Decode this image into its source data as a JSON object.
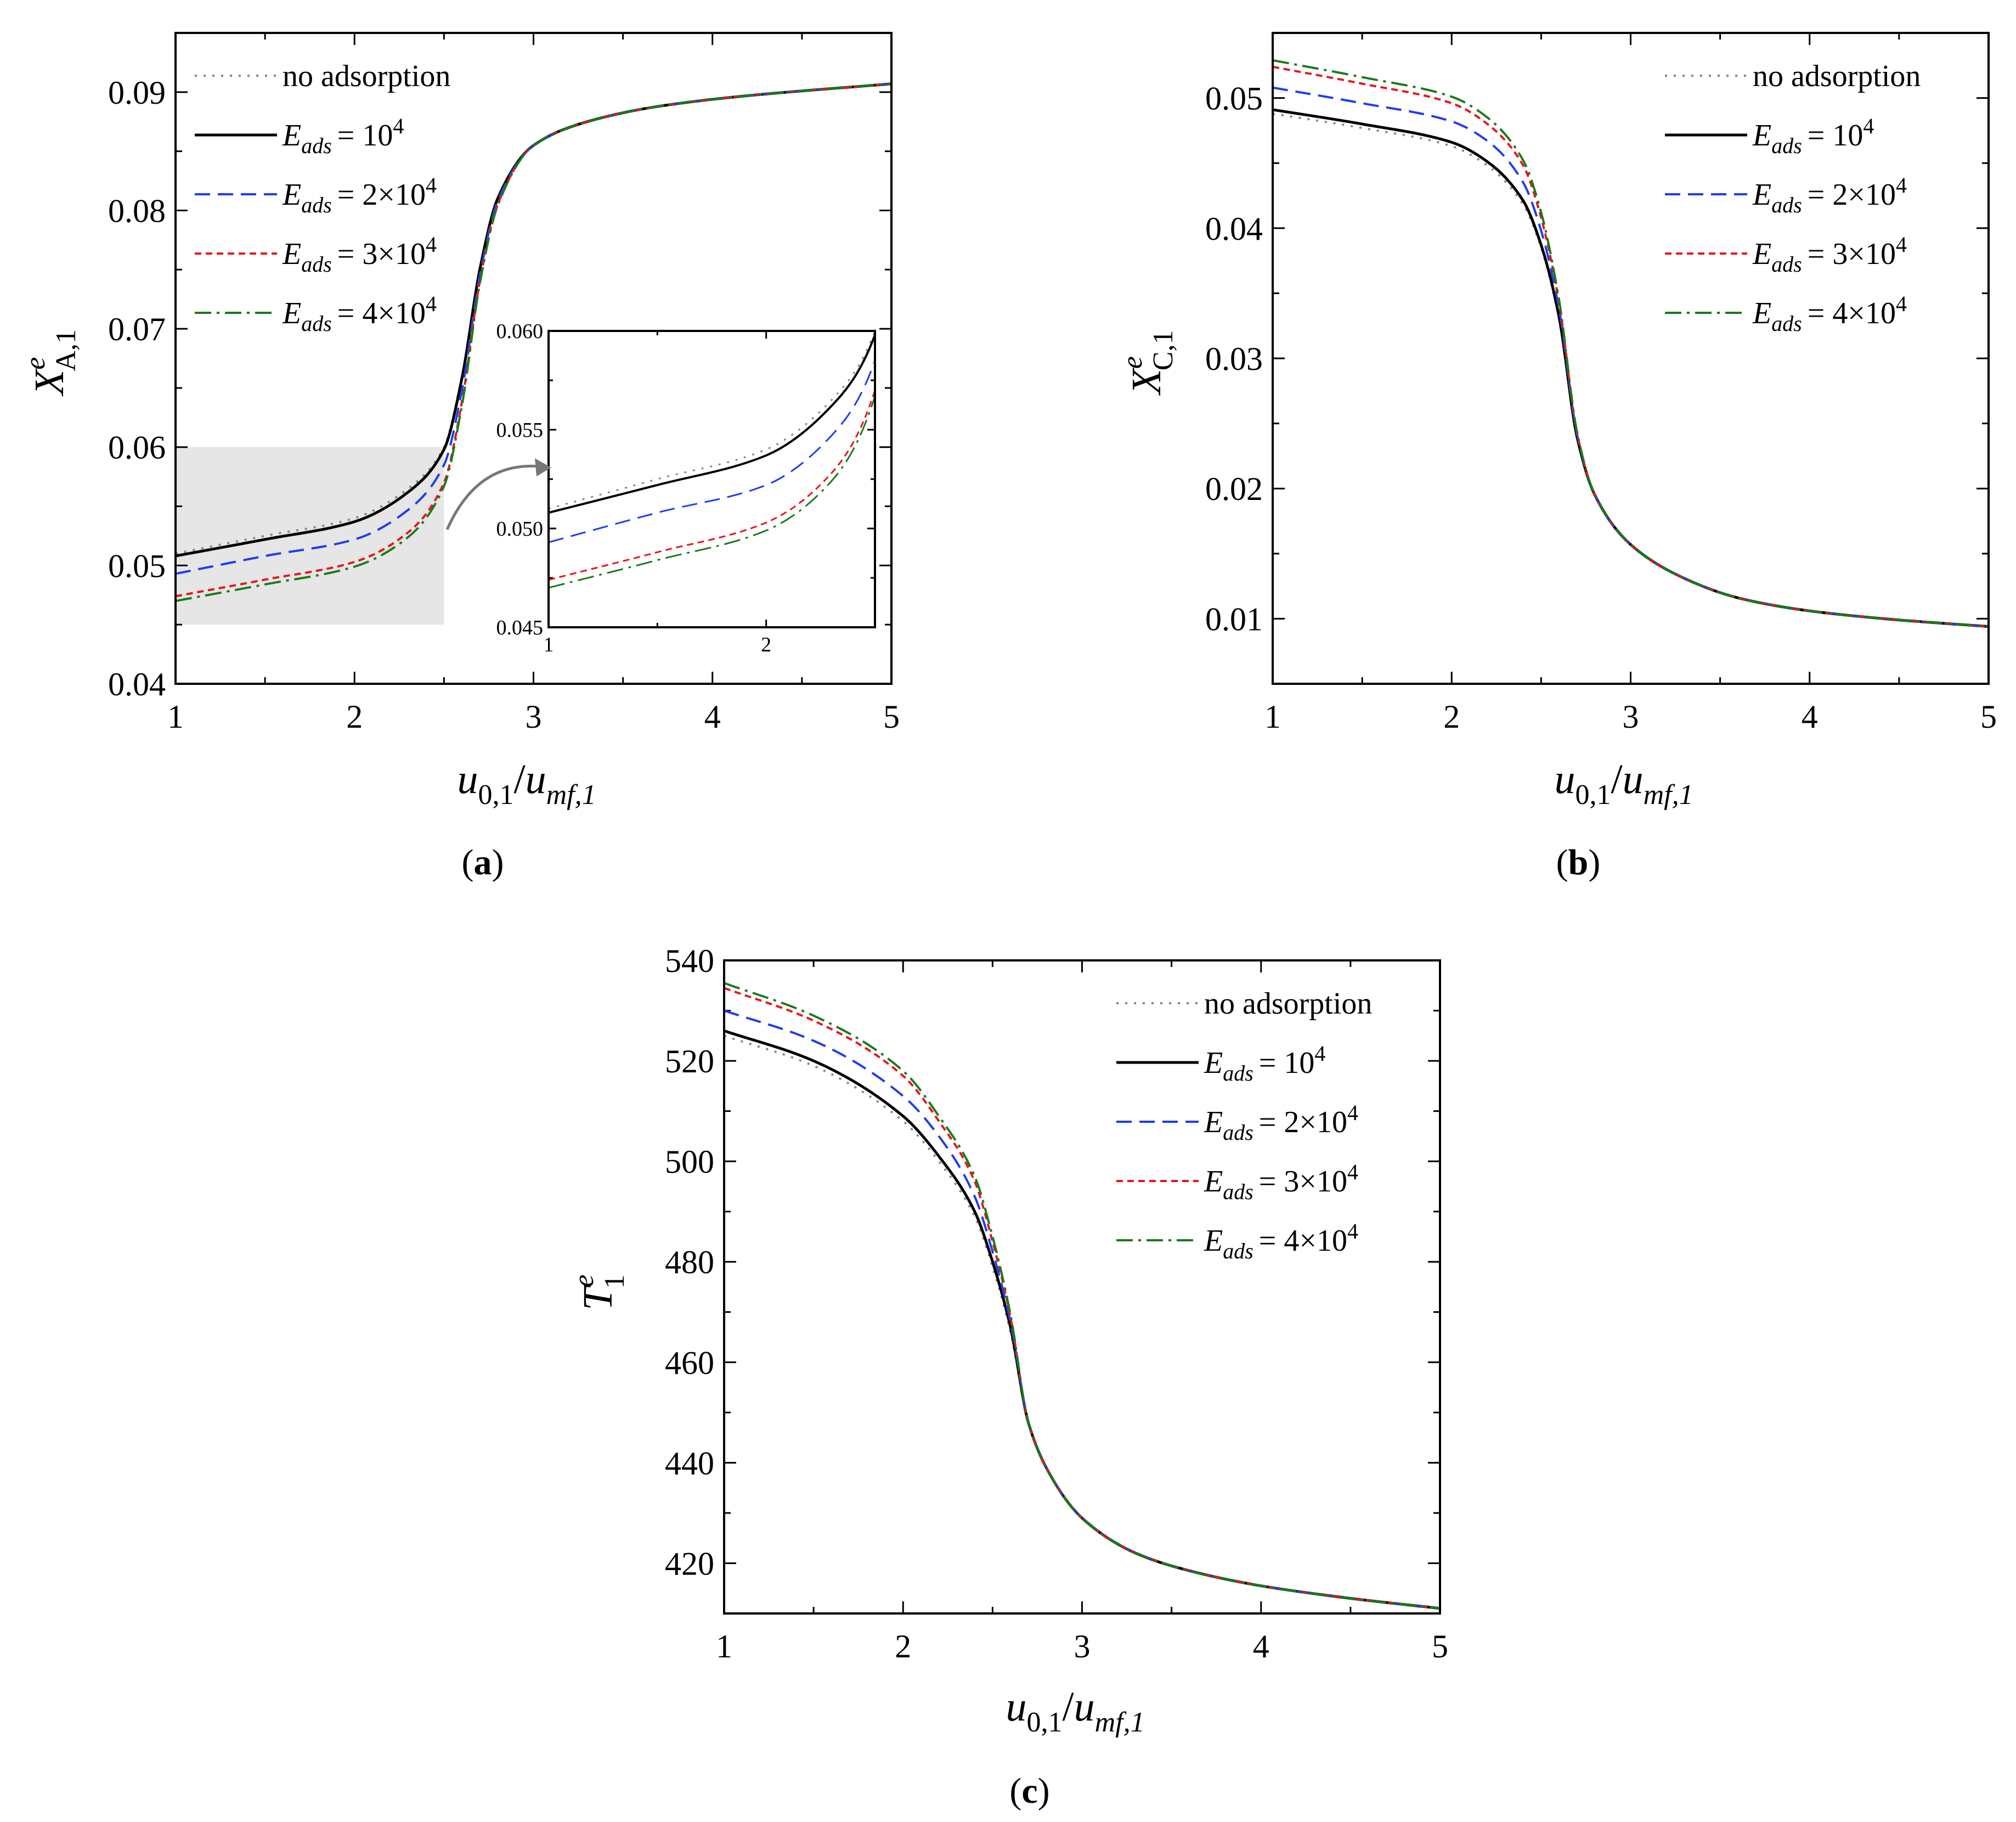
{
  "series_styles": [
    {
      "key": "noads",
      "color": "#888888",
      "dash": "4,12",
      "width": 4
    },
    {
      "key": "e1",
      "color": "#000000",
      "dash": "",
      "width": 5
    },
    {
      "key": "e2",
      "color": "#1e3cf0",
      "dash": "28,14",
      "width": 4
    },
    {
      "key": "e3",
      "color": "#e8141e",
      "dash": "12,8",
      "width": 4
    },
    {
      "key": "e4",
      "color": "#1a7a1a",
      "dash": "30,10,5,10",
      "width": 4
    }
  ],
  "legend": {
    "noads": "no adsorption",
    "e_symbol": "E",
    "e_sub": "ads",
    "e1_val": "= 10",
    "e1_exp": "4",
    "e2_val": "= 2×10",
    "e2_exp": "4",
    "e3_val": "= 3×10",
    "e3_exp": "4",
    "e4_val": "= 4×10",
    "e4_exp": "4"
  },
  "xlabel": {
    "u": "u",
    "u_sub": "0,1",
    "slash": "/",
    "umf": "u",
    "umf_sub": "mf,1"
  },
  "captions": {
    "a": "a",
    "b": "b",
    "c": "c"
  },
  "chart_data": [
    {
      "id": "a",
      "type": "line",
      "ylabel": {
        "sym": "X",
        "sup": "e",
        "sub": "A,1"
      },
      "xlim": [
        1,
        5
      ],
      "ylim": [
        0.04,
        0.095
      ],
      "xticks": [
        "1",
        "2",
        "3",
        "4",
        "5"
      ],
      "yticks": [
        "0.04",
        "0.05",
        "0.06",
        "0.07",
        "0.08",
        "0.09"
      ],
      "series": [
        {
          "name": "no adsorption",
          "x": [
            1,
            1.5,
            2,
            2.3,
            2.5,
            2.6,
            2.7,
            2.8,
            3,
            3.3,
            3.7,
            4.2,
            5
          ],
          "y": [
            0.051,
            0.0525,
            0.054,
            0.0565,
            0.06,
            0.066,
            0.075,
            0.081,
            0.0855,
            0.0875,
            0.0888,
            0.0897,
            0.0907
          ]
        },
        {
          "name": "E_ads = 10^4",
          "x": [
            1,
            1.5,
            2,
            2.3,
            2.5,
            2.6,
            2.7,
            2.8,
            3,
            3.3,
            3.7,
            4.2,
            5
          ],
          "y": [
            0.0508,
            0.0522,
            0.0537,
            0.0562,
            0.0598,
            0.0658,
            0.075,
            0.081,
            0.0855,
            0.0875,
            0.0888,
            0.0897,
            0.0907
          ]
        },
        {
          "name": "E_ads = 2×10^4",
          "x": [
            1,
            1.5,
            2,
            2.3,
            2.5,
            2.6,
            2.7,
            2.8,
            3,
            3.3,
            3.7,
            4.2,
            5
          ],
          "y": [
            0.0493,
            0.0508,
            0.0522,
            0.0547,
            0.0585,
            0.0648,
            0.0745,
            0.0808,
            0.0855,
            0.0875,
            0.0888,
            0.0897,
            0.0907
          ]
        },
        {
          "name": "E_ads = 3×10^4",
          "x": [
            1,
            1.5,
            2,
            2.3,
            2.5,
            2.6,
            2.7,
            2.8,
            3,
            3.3,
            3.7,
            4.2,
            5
          ],
          "y": [
            0.0474,
            0.0488,
            0.0503,
            0.0528,
            0.057,
            0.0638,
            0.074,
            0.0805,
            0.0855,
            0.0875,
            0.0888,
            0.0897,
            0.0907
          ]
        },
        {
          "name": "E_ads = 4×10^4",
          "x": [
            1,
            1.5,
            2,
            2.3,
            2.5,
            2.6,
            2.7,
            2.8,
            3,
            3.3,
            3.7,
            4.2,
            5
          ],
          "y": [
            0.047,
            0.0484,
            0.0499,
            0.0524,
            0.0567,
            0.0635,
            0.0738,
            0.0804,
            0.0855,
            0.0875,
            0.0888,
            0.0897,
            0.0907
          ]
        }
      ],
      "highlight_region": {
        "x": [
          1,
          2.5
        ],
        "y": [
          0.045,
          0.06
        ]
      },
      "inset": {
        "xlim": [
          1,
          2.5
        ],
        "ylim": [
          0.045,
          0.06
        ],
        "xticks": [
          "1",
          "2"
        ],
        "yticks": [
          "0.045",
          "0.050",
          "0.055",
          "0.060"
        ]
      }
    },
    {
      "id": "b",
      "type": "line",
      "ylabel": {
        "sym": "X",
        "sup": "e",
        "sub": "C,1"
      },
      "xlim": [
        1,
        5
      ],
      "ylim": [
        0.005,
        0.055
      ],
      "xticks": [
        "1",
        "2",
        "3",
        "4",
        "5"
      ],
      "yticks": [
        "0.01",
        "0.02",
        "0.03",
        "0.04",
        "0.05"
      ],
      "series": [
        {
          "name": "no adsorption",
          "x": [
            1,
            1.5,
            2,
            2.2,
            2.4,
            2.5,
            2.6,
            2.7,
            2.8,
            3,
            3.3,
            3.6,
            4,
            4.5,
            5
          ],
          "y": [
            0.0488,
            0.0477,
            0.0463,
            0.0448,
            0.0418,
            0.0385,
            0.033,
            0.024,
            0.0195,
            0.0157,
            0.0131,
            0.0116,
            0.0106,
            0.0099,
            0.0094
          ]
        },
        {
          "name": "E_ads = 10^4",
          "x": [
            1,
            1.5,
            2,
            2.2,
            2.4,
            2.5,
            2.6,
            2.7,
            2.8,
            3,
            3.3,
            3.6,
            4,
            4.5,
            5
          ],
          "y": [
            0.0491,
            0.048,
            0.0466,
            0.0451,
            0.0421,
            0.0387,
            0.0332,
            0.024,
            0.0195,
            0.0157,
            0.0131,
            0.0116,
            0.0106,
            0.0099,
            0.0094
          ]
        },
        {
          "name": "E_ads = 2×10^4",
          "x": [
            1,
            1.5,
            2,
            2.2,
            2.4,
            2.5,
            2.6,
            2.7,
            2.8,
            3,
            3.3,
            3.6,
            4,
            4.5,
            5
          ],
          "y": [
            0.0508,
            0.0496,
            0.0482,
            0.0467,
            0.0435,
            0.0398,
            0.0338,
            0.0242,
            0.0195,
            0.0157,
            0.0131,
            0.0116,
            0.0106,
            0.0099,
            0.0094
          ]
        },
        {
          "name": "E_ads = 3×10^4",
          "x": [
            1,
            1.5,
            2,
            2.2,
            2.4,
            2.5,
            2.6,
            2.7,
            2.8,
            3,
            3.3,
            3.6,
            4,
            4.5,
            5
          ],
          "y": [
            0.0524,
            0.0511,
            0.0496,
            0.048,
            0.0448,
            0.0408,
            0.0343,
            0.0243,
            0.0195,
            0.0157,
            0.0131,
            0.0116,
            0.0106,
            0.0099,
            0.0094
          ]
        },
        {
          "name": "E_ads = 4×10^4",
          "x": [
            1,
            1.5,
            2,
            2.2,
            2.4,
            2.5,
            2.6,
            2.7,
            2.8,
            3,
            3.3,
            3.6,
            4,
            4.5,
            5
          ],
          "y": [
            0.0529,
            0.0516,
            0.0501,
            0.0485,
            0.0452,
            0.0412,
            0.0345,
            0.0244,
            0.0195,
            0.0157,
            0.0131,
            0.0116,
            0.0106,
            0.0099,
            0.0094
          ]
        }
      ]
    },
    {
      "id": "c",
      "type": "line",
      "ylabel": {
        "sym": "T",
        "sup": "e",
        "sub": "1"
      },
      "xlim": [
        1,
        5
      ],
      "ylim": [
        410,
        540
      ],
      "xticks": [
        "1",
        "2",
        "3",
        "4",
        "5"
      ],
      "yticks": [
        "420",
        "440",
        "460",
        "480",
        "500",
        "520",
        "540"
      ],
      "series": [
        {
          "name": "no adsorption",
          "x": [
            1,
            1.5,
            2,
            2.2,
            2.4,
            2.5,
            2.6,
            2.7,
            2.8,
            3,
            3.3,
            3.6,
            4,
            4.5,
            5
          ],
          "y": [
            525,
            519,
            508,
            500,
            489,
            479,
            466,
            448,
            439,
            429,
            422,
            418.5,
            415.5,
            413,
            411
          ]
        },
        {
          "name": "E_ads = 10^4",
          "x": [
            1,
            1.5,
            2,
            2.2,
            2.4,
            2.5,
            2.6,
            2.7,
            2.8,
            3,
            3.3,
            3.6,
            4,
            4.5,
            5
          ],
          "y": [
            526,
            520,
            509,
            501,
            490,
            480,
            467,
            448,
            439,
            429,
            422,
            418.5,
            415.5,
            413,
            411
          ]
        },
        {
          "name": "E_ads = 2×10^4",
          "x": [
            1,
            1.5,
            2,
            2.2,
            2.4,
            2.5,
            2.6,
            2.7,
            2.8,
            3,
            3.3,
            3.6,
            4,
            4.5,
            5
          ],
          "y": [
            530,
            524,
            513,
            505,
            493,
            482,
            468,
            448,
            439,
            429,
            422,
            418.5,
            415.5,
            413,
            411
          ]
        },
        {
          "name": "E_ads = 3×10^4",
          "x": [
            1,
            1.5,
            2,
            2.2,
            2.4,
            2.5,
            2.6,
            2.7,
            2.8,
            3,
            3.3,
            3.6,
            4,
            4.5,
            5
          ],
          "y": [
            534.5,
            528,
            517,
            508,
            496,
            484,
            469,
            448,
            439,
            429,
            422,
            418.5,
            415.5,
            413,
            411
          ]
        },
        {
          "name": "E_ads = 4×10^4",
          "x": [
            1,
            1.5,
            2,
            2.2,
            2.4,
            2.5,
            2.6,
            2.7,
            2.8,
            3,
            3.3,
            3.6,
            4,
            4.5,
            5
          ],
          "y": [
            535.5,
            529,
            518,
            509,
            497,
            485,
            469.5,
            448,
            439,
            429,
            422,
            418.5,
            415.5,
            413,
            411
          ]
        }
      ]
    }
  ]
}
